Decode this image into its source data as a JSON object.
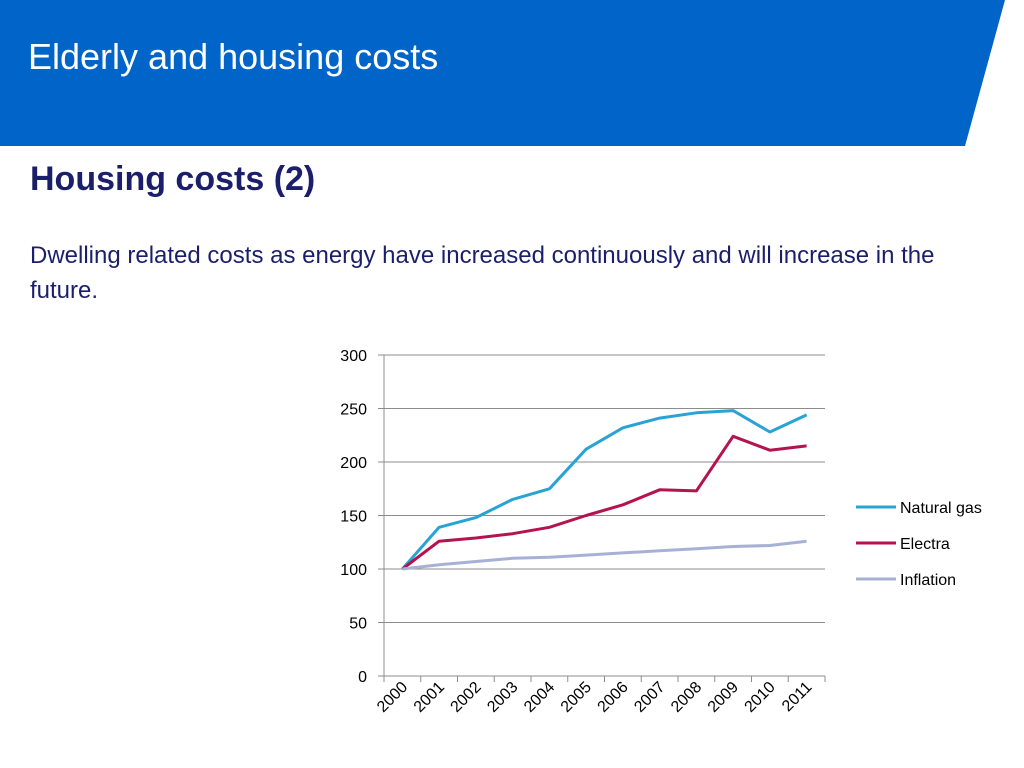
{
  "slide": {
    "title": "Elderly and housing costs",
    "heading": "Housing costs (2)",
    "body": "Dwelling related costs as energy have increased continuously and will increase in the future."
  },
  "colors": {
    "header": "#0064c8",
    "text": "#1b1f6b"
  },
  "chart_data": {
    "type": "line",
    "title": "",
    "xlabel": "",
    "ylabel": "",
    "x": [
      "2000",
      "2001",
      "2002",
      "2003",
      "2004",
      "2005",
      "2006",
      "2007",
      "2008",
      "2009",
      "2010",
      "2011"
    ],
    "ylim": [
      0,
      300
    ],
    "yticks": [
      0,
      50,
      100,
      150,
      200,
      250,
      300
    ],
    "grid": "horizontal",
    "legend": "right",
    "series": [
      {
        "name": "Natural gas",
        "color": "#29a3d4",
        "values": [
          100,
          139,
          148,
          165,
          175,
          212,
          232,
          241,
          246,
          248,
          228,
          244
        ]
      },
      {
        "name": "Electra",
        "color": "#b5134f",
        "values": [
          100,
          126,
          129,
          133,
          139,
          150,
          160,
          174,
          173,
          224,
          211,
          215
        ]
      },
      {
        "name": "Inflation",
        "color": "#a7b1d6",
        "values": [
          100,
          104,
          107,
          110,
          111,
          113,
          115,
          117,
          119,
          121,
          122,
          126
        ]
      }
    ]
  }
}
